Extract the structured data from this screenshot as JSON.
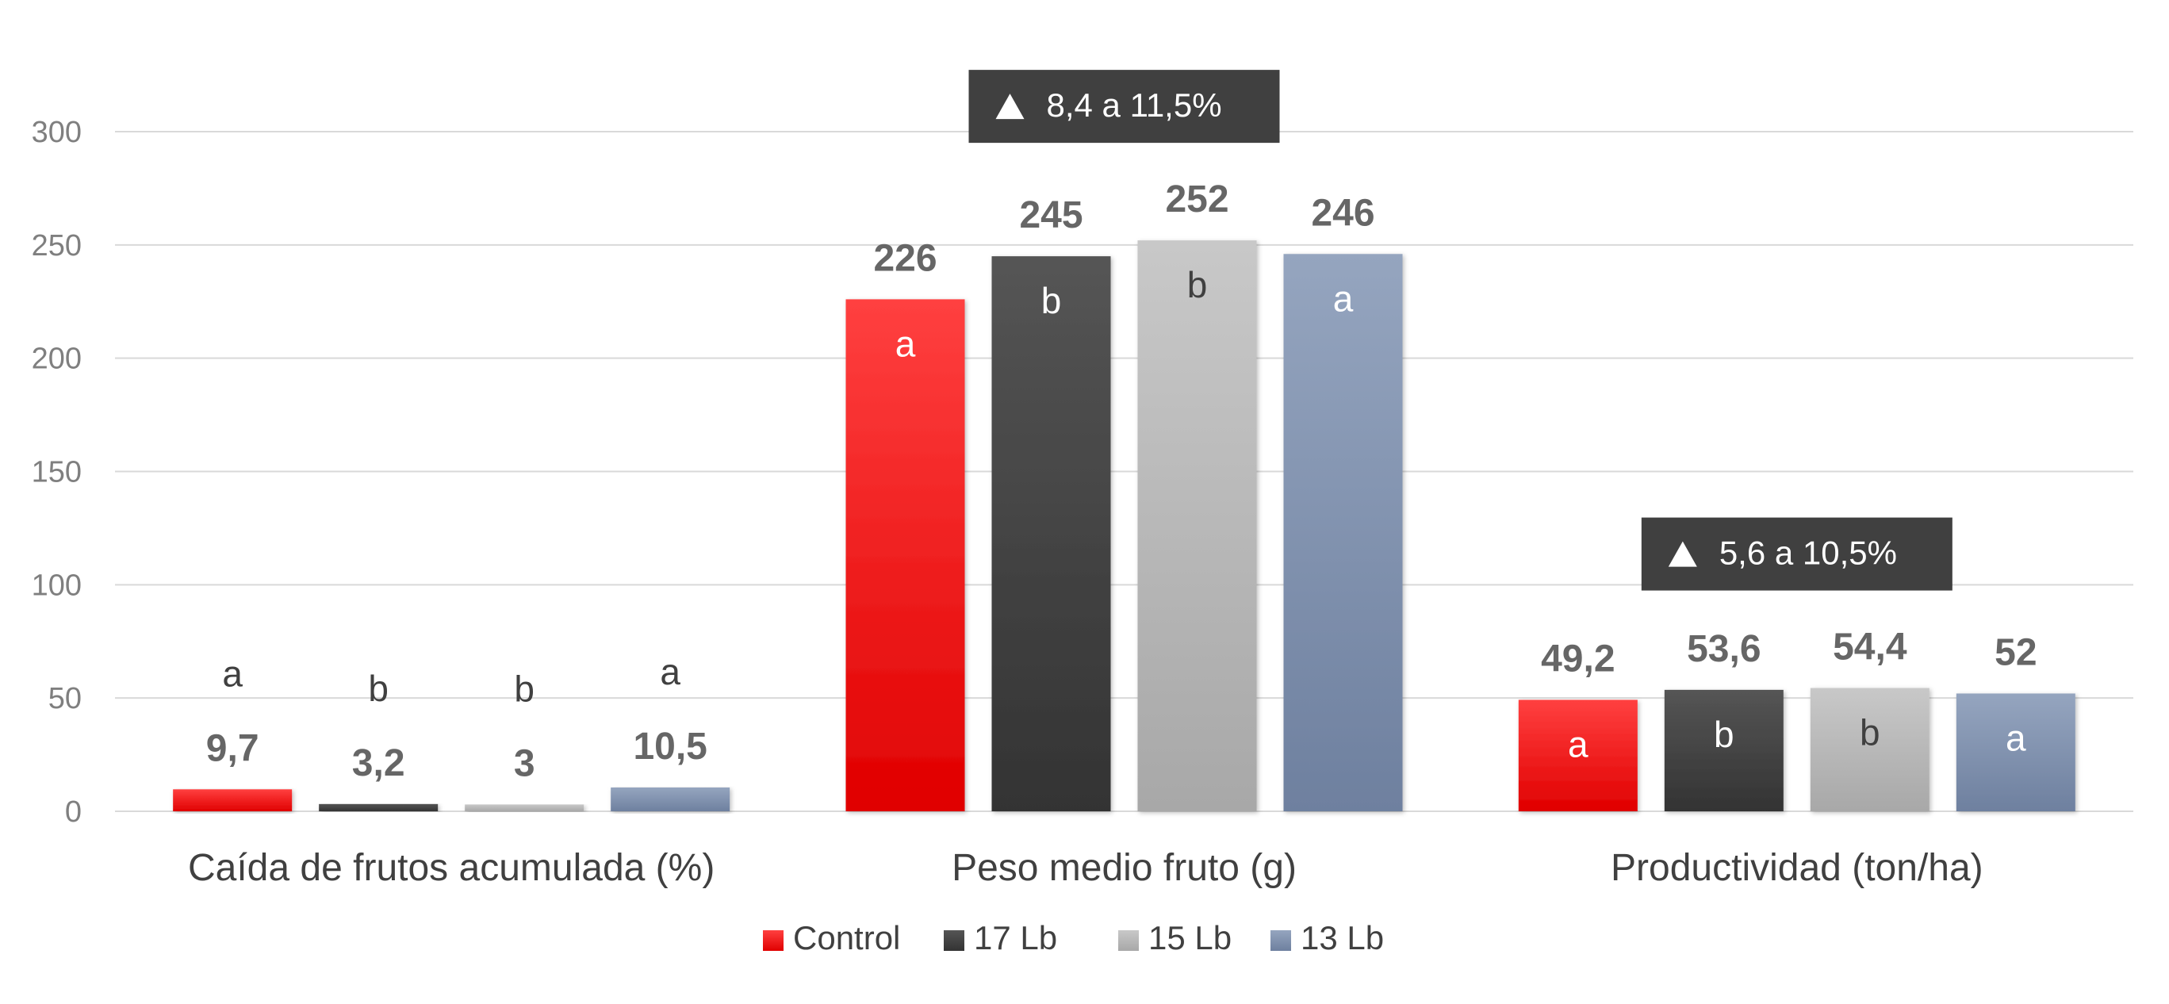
{
  "chart_data": {
    "type": "bar",
    "categories": [
      "Caída de frutos acumulada (%)",
      "Peso medio fruto (g)",
      "Productividad (ton/ha)"
    ],
    "series": [
      {
        "name": "Control",
        "values": [
          9.7,
          226,
          49.2
        ],
        "value_labels": [
          "9,7",
          "226",
          "49,2"
        ],
        "letters": [
          "a",
          "a",
          "a"
        ],
        "color_top": "#FF4040",
        "color_bottom": "#E00000"
      },
      {
        "name": "17 Lb",
        "values": [
          3.2,
          245,
          53.6
        ],
        "value_labels": [
          "3,2",
          "245",
          "53,6"
        ],
        "letters": [
          "b",
          "b",
          "b"
        ],
        "color_top": "#555555",
        "color_bottom": "#333333"
      },
      {
        "name": "15 Lb",
        "values": [
          3,
          252,
          54.4
        ],
        "value_labels": [
          "3",
          "252",
          "54,4"
        ],
        "letters": [
          "b",
          "b",
          "b"
        ],
        "color_top": "#C8C8C8",
        "color_bottom": "#A8A8A8"
      },
      {
        "name": "13 Lb",
        "values": [
          10.5,
          246,
          52
        ],
        "value_labels": [
          "10,5",
          "246",
          "52"
        ],
        "letters": [
          "a",
          "a",
          "a"
        ],
        "color_top": "#95A5BF",
        "color_bottom": "#6E809F"
      }
    ],
    "ylim": [
      0,
      300
    ],
    "yticks": [
      0,
      50,
      100,
      150,
      200,
      250,
      300
    ],
    "grid": true,
    "legend_position": "bottom",
    "annotations": [
      {
        "category_index": 1,
        "text": "8,4 a 11,5%",
        "icon": "triangle-up-icon"
      },
      {
        "category_index": 2,
        "text": "5,6 a 10,5%",
        "icon": "triangle-up-icon"
      }
    ],
    "colors": {
      "grid": "#D9D9D9",
      "tick_text": "#7F7F7F",
      "value_text": "#666666",
      "annotation_bg": "#404040",
      "annotation_text": "#FFFFFF",
      "letter_on_dark": "#FFFFFF",
      "letter_on_light": "#404040"
    }
  }
}
